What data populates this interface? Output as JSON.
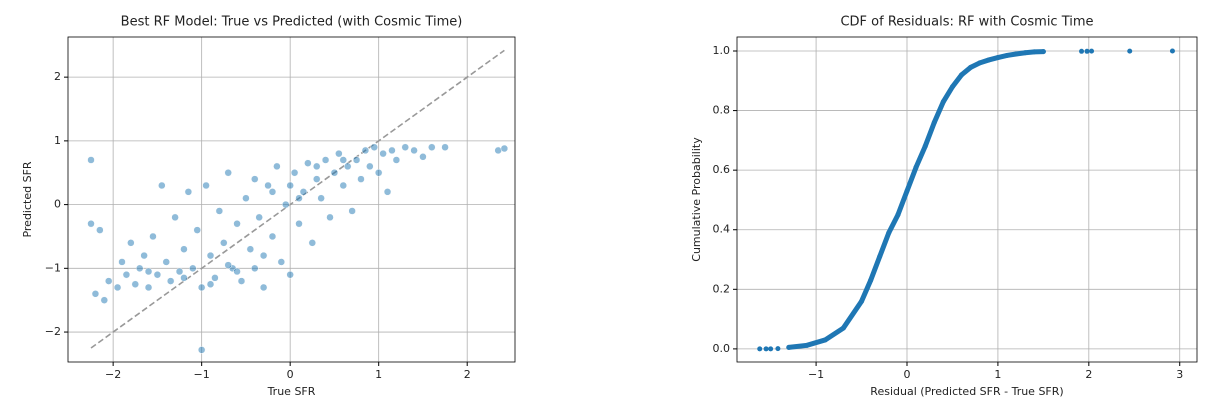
{
  "chart_data": [
    {
      "type": "scatter",
      "title": "Best RF Model: True vs Predicted (with Cosmic Time)",
      "x_label": "True SFR",
      "y_label": "Predicted SFR",
      "xlim": [
        -2.51,
        2.54
      ],
      "ylim": [
        -2.47,
        2.63
      ],
      "xticks": [
        {
          "value": -2,
          "label": "−2"
        },
        {
          "value": -1,
          "label": "−1"
        },
        0,
        1,
        2
      ],
      "yticks": [
        {
          "value": -2,
          "label": "−2"
        },
        {
          "value": -1,
          "label": "−1"
        },
        0,
        1,
        2
      ],
      "grid": true,
      "reference_line": {
        "x": [
          -2.25,
          2.42
        ],
        "y": [
          -2.25,
          2.42
        ],
        "color": "#999999"
      },
      "series": [
        {
          "color": "#1f77b4",
          "x": [
            -2.25,
            -2.25,
            -2.15,
            -2.2,
            -2.1,
            -2.05,
            -1.95,
            -1.9,
            -1.85,
            -1.8,
            -1.75,
            -1.7,
            -1.65,
            -1.6,
            -1.55,
            -1.5,
            -1.45,
            -1.4,
            -1.35,
            -1.3,
            -1.25,
            -1.2,
            -1.15,
            -1.1,
            -1.05,
            -1.0,
            -1.0,
            -0.95,
            -0.9,
            -0.85,
            -0.8,
            -0.75,
            -0.7,
            -0.65,
            -0.6,
            -0.55,
            -0.5,
            -0.45,
            -0.4,
            -0.35,
            -0.3,
            -0.25,
            -0.2,
            -0.15,
            -0.1,
            -0.05,
            0.0,
            0.0,
            0.05,
            0.1,
            0.15,
            0.2,
            0.25,
            0.3,
            0.35,
            0.4,
            0.45,
            0.5,
            0.55,
            0.6,
            0.65,
            0.7,
            0.75,
            0.8,
            0.85,
            0.9,
            0.95,
            1.0,
            1.05,
            1.1,
            1.15,
            1.2,
            1.3,
            1.4,
            1.5,
            1.6,
            1.75,
            2.35,
            2.42,
            -1.2,
            -0.9,
            -0.6,
            -0.3,
            0.1,
            0.3,
            -1.6,
            -0.4,
            0.6,
            -0.2,
            -0.7
          ],
          "values": [
            0.7,
            -0.3,
            -0.4,
            -1.4,
            -1.5,
            -1.2,
            -1.3,
            -0.9,
            -1.1,
            -0.6,
            -1.25,
            -1.0,
            -0.8,
            -1.3,
            -0.5,
            -1.1,
            0.3,
            -0.9,
            -1.2,
            -0.2,
            -1.05,
            -0.7,
            0.2,
            -1.0,
            -0.4,
            -2.28,
            -1.3,
            0.3,
            -0.8,
            -1.15,
            -0.1,
            -0.6,
            0.5,
            -1.0,
            -0.3,
            -1.2,
            0.1,
            -0.7,
            0.4,
            -0.2,
            -1.3,
            0.3,
            -0.5,
            0.6,
            -0.9,
            0.0,
            0.3,
            -1.1,
            0.5,
            -0.3,
            0.2,
            0.65,
            -0.6,
            0.4,
            0.1,
            0.7,
            -0.2,
            0.5,
            0.8,
            0.3,
            0.6,
            -0.1,
            0.7,
            0.4,
            0.85,
            0.6,
            0.9,
            0.5,
            0.8,
            0.2,
            0.85,
            0.7,
            0.9,
            0.85,
            0.75,
            0.9,
            0.9,
            0.85,
            0.88,
            -1.15,
            -1.25,
            -1.05,
            -0.8,
            0.1,
            0.6,
            -1.05,
            -1.0,
            0.7,
            0.2,
            -0.95
          ]
        }
      ]
    },
    {
      "type": "scatter",
      "title": "CDF of Residuals: RF with Cosmic Time",
      "x_label": "Residual (Predicted SFR - True SFR)",
      "y_label": "Cumulative Probability",
      "xlim": [
        -1.87,
        3.19
      ],
      "ylim": [
        -0.044,
        1.047
      ],
      "xticks": [
        {
          "value": -1,
          "label": "−1"
        },
        0,
        1,
        2,
        3
      ],
      "yticks": [
        {
          "value": 0,
          "label": "0.0"
        },
        0.2,
        0.4,
        0.6,
        0.8,
        {
          "value": 1,
          "label": "1.0"
        }
      ],
      "grid": true,
      "series": [
        {
          "color": "#1f77b4",
          "connected": true,
          "x": [
            -1.3,
            -1.1,
            -0.9,
            -0.7,
            -0.5,
            -0.4,
            -0.3,
            -0.2,
            -0.1,
            0,
            0.1,
            0.2,
            0.3,
            0.4,
            0.5,
            0.6,
            0.7,
            0.8,
            0.9,
            1.0,
            1.1,
            1.2,
            1.3,
            1.4,
            1.5
          ],
          "values": [
            0.005,
            0.012,
            0.03,
            0.07,
            0.16,
            0.23,
            0.31,
            0.39,
            0.45,
            0.53,
            0.61,
            0.68,
            0.76,
            0.83,
            0.88,
            0.92,
            0.945,
            0.96,
            0.97,
            0.978,
            0.985,
            0.99,
            0.994,
            0.997,
            0.998
          ]
        },
        {
          "color": "#1f77b4",
          "connected": false,
          "x": [
            -1.62,
            -1.55,
            -1.5,
            -1.42,
            1.92,
            1.98,
            2.03,
            2.45,
            2.92
          ],
          "values": [
            0,
            0,
            0,
            0.001,
            0.999,
            0.999,
            0.9995,
            0.9997,
            1.0
          ]
        }
      ]
    }
  ]
}
